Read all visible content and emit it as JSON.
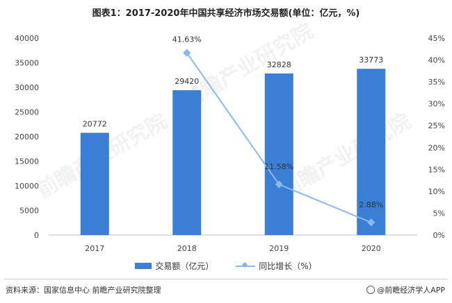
{
  "title": "图表1：2017-2020年中国共享经济市场交易额(单位：亿元，%)",
  "chart_data": {
    "type": "bar",
    "categories": [
      "2017",
      "2018",
      "2019",
      "2020"
    ],
    "series": [
      {
        "name": "交易额（亿元）",
        "type": "bar",
        "axis": "left",
        "values": [
          20772,
          29420,
          32828,
          33773
        ],
        "color": "#3a7fd5"
      },
      {
        "name": "同比增长（%）",
        "type": "line",
        "axis": "right",
        "values": [
          null,
          41.63,
          11.58,
          2.88
        ],
        "color": "#8ab8ec"
      }
    ],
    "bar_labels": [
      "20772",
      "29420",
      "32828",
      "33773"
    ],
    "line_labels": [
      "",
      "41.63%",
      "11.58%",
      "2.88%"
    ],
    "ylim_left": [
      0,
      40000
    ],
    "yticks_left": [
      "0",
      "5000",
      "10000",
      "15000",
      "20000",
      "25000",
      "30000",
      "35000",
      "40000"
    ],
    "ylim_right": [
      0,
      45
    ],
    "yticks_right": [
      "0%",
      "5%",
      "10%",
      "15%",
      "20%",
      "25%",
      "30%",
      "35%",
      "40%",
      "45%"
    ],
    "grid": false,
    "legend_position": "bottom"
  },
  "legend": {
    "bar_label": "交易额（亿元）",
    "line_label": "同比增长（%）"
  },
  "footer": {
    "source": "资料来源：国家信息中心 前瞻产业研究院整理",
    "brand": "@前瞻经济学人APP"
  },
  "watermark": "前瞻产业研究院"
}
